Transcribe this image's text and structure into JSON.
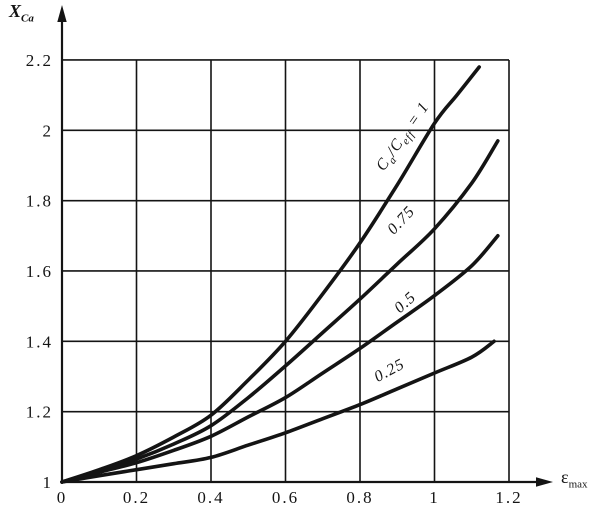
{
  "figure": {
    "background": "#ffffff",
    "ink_color": "#141414"
  },
  "chart_data": {
    "type": "line",
    "title": "",
    "grid": true,
    "legend_position": "labels-on-curves",
    "x_axis": {
      "label_main": "ε",
      "label_sub": "max",
      "range": [
        0,
        1.2
      ],
      "ticks": [
        0,
        0.2,
        0.4,
        0.6,
        0.8,
        1,
        1.2
      ],
      "tick_labels": [
        "0",
        "0.2",
        "0.4",
        "0.6",
        "0.8",
        "1",
        "1.2"
      ]
    },
    "y_axis": {
      "label_main": "X",
      "label_sub": "Ca",
      "range": [
        1,
        2.2
      ],
      "ticks": [
        1,
        1.2,
        1.4,
        1.6,
        1.8,
        2,
        2.2
      ],
      "tick_labels": [
        "1",
        "1.2",
        "1.4",
        "1.6",
        "1.8",
        "2",
        "2.2"
      ]
    },
    "series": [
      {
        "name": "Ca/Ceff = 1",
        "label_parts": [
          [
            "t",
            "C"
          ],
          [
            "s",
            "a"
          ],
          [
            "t",
            "/C"
          ],
          [
            "s",
            "eff"
          ],
          [
            "t",
            " = 1"
          ]
        ],
        "label_pos": {
          "x": 0.925,
          "y": 1.975,
          "angle": -55
        },
        "x": [
          0,
          0.1,
          0.2,
          0.3,
          0.4,
          0.5,
          0.6,
          0.7,
          0.8,
          0.9,
          1.0,
          1.06,
          1.12
        ],
        "y": [
          1,
          1.035,
          1.075,
          1.128,
          1.19,
          1.29,
          1.4,
          1.535,
          1.68,
          1.845,
          2.02,
          2.1,
          2.18
        ]
      },
      {
        "name": "0.75",
        "label_parts": [
          [
            "t",
            "0.75"
          ]
        ],
        "label_pos": {
          "x": 0.92,
          "y": 1.735,
          "angle": -47
        },
        "x": [
          0,
          0.1,
          0.2,
          0.3,
          0.4,
          0.5,
          0.6,
          0.7,
          0.8,
          0.9,
          1.0,
          1.1,
          1.17
        ],
        "y": [
          1,
          1.03,
          1.065,
          1.108,
          1.16,
          1.24,
          1.33,
          1.425,
          1.52,
          1.62,
          1.72,
          1.85,
          1.97
        ]
      },
      {
        "name": "0.5",
        "label_parts": [
          [
            "t",
            "0.5"
          ]
        ],
        "label_pos": {
          "x": 0.93,
          "y": 1.5,
          "angle": -42
        },
        "x": [
          0,
          0.1,
          0.2,
          0.3,
          0.4,
          0.5,
          0.6,
          0.7,
          0.8,
          0.9,
          1.0,
          1.1,
          1.17
        ],
        "y": [
          1,
          1.028,
          1.055,
          1.09,
          1.13,
          1.185,
          1.24,
          1.31,
          1.38,
          1.455,
          1.53,
          1.615,
          1.7
        ]
      },
      {
        "name": "0.25",
        "label_parts": [
          [
            "t",
            "0.25"
          ]
        ],
        "label_pos": {
          "x": 0.885,
          "y": 1.305,
          "angle": -28
        },
        "x": [
          0,
          0.1,
          0.2,
          0.3,
          0.4,
          0.5,
          0.6,
          0.7,
          0.8,
          0.9,
          1.0,
          1.1,
          1.16
        ],
        "y": [
          1,
          1.018,
          1.035,
          1.052,
          1.07,
          1.105,
          1.14,
          1.18,
          1.22,
          1.265,
          1.31,
          1.355,
          1.4
        ]
      }
    ]
  }
}
